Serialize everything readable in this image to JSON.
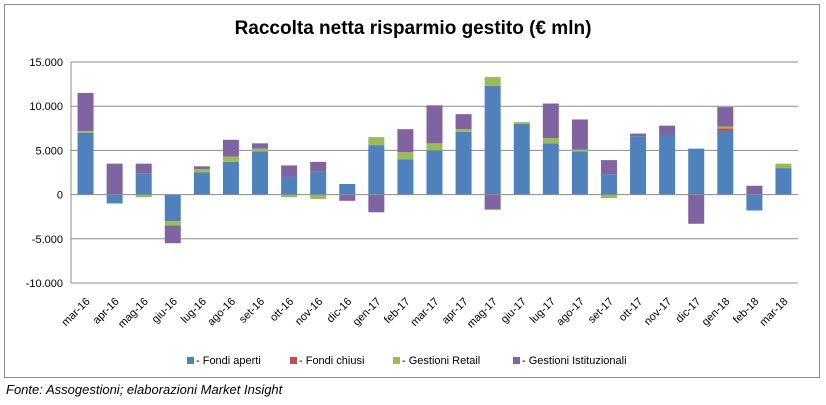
{
  "chart_data": {
    "type": "bar",
    "stacked": true,
    "title": "Raccolta netta risparmio gestito (€ mln)",
    "xlabel": "",
    "ylabel": "",
    "ylim": [
      -10000,
      15000
    ],
    "yticks": [
      15000,
      10000,
      5000,
      0,
      -5000,
      -10000
    ],
    "ytick_labels": [
      "15.000",
      "10.000",
      "5.000",
      "0",
      "-5.000",
      "-10.000"
    ],
    "grid": true,
    "legend_position": "bottom",
    "categories": [
      "mar-16",
      "apr-16",
      "mag-16",
      "giu-16",
      "lug-16",
      "ago-16",
      "set-16",
      "ott-16",
      "nov-16",
      "dic-16",
      "gen-17",
      "feb-17",
      "mar-17",
      "apr-17",
      "mag-17",
      "giu-17",
      "lug-17",
      "ago-17",
      "set-17",
      "ott-17",
      "nov-17",
      "dic-17",
      "gen-18",
      "feb-18",
      "mar-18"
    ],
    "series": [
      {
        "name": " - Fondi aperti",
        "color": "#4f81bd",
        "values": [
          7000,
          -1000,
          2400,
          -3000,
          2500,
          3700,
          4900,
          2000,
          2600,
          1200,
          5600,
          4000,
          5000,
          7100,
          12300,
          8000,
          5800,
          4900,
          2300,
          6600,
          6800,
          5200,
          7200,
          -1800,
          3000
        ]
      },
      {
        "name": " - Fondi chiusi",
        "color": "#c0504d",
        "values": [
          0,
          0,
          0,
          0,
          0,
          0,
          0,
          0,
          0,
          0,
          0,
          0,
          0,
          0,
          0,
          0,
          0,
          0,
          0,
          0,
          0,
          0,
          300,
          0,
          0
        ]
      },
      {
        "name": " - Gestioni Retail",
        "color": "#9bbb59",
        "values": [
          200,
          0,
          -300,
          -500,
          400,
          600,
          300,
          -300,
          -500,
          0,
          900,
          800,
          800,
          300,
          1000,
          200,
          600,
          200,
          -400,
          0,
          0,
          0,
          200,
          0,
          500
        ]
      },
      {
        "name": " - Gestioni Istituzionali",
        "color": "#8064a2",
        "values": [
          4300,
          3500,
          1100,
          -2000,
          300,
          1900,
          600,
          1300,
          1100,
          -700,
          -2000,
          2600,
          4300,
          1700,
          -1700,
          0,
          3900,
          3400,
          1600,
          300,
          1000,
          -3300,
          2200,
          1000,
          0
        ]
      }
    ]
  },
  "source_note": "Fonte: Assogestioni; elaborazioni Market Insight"
}
